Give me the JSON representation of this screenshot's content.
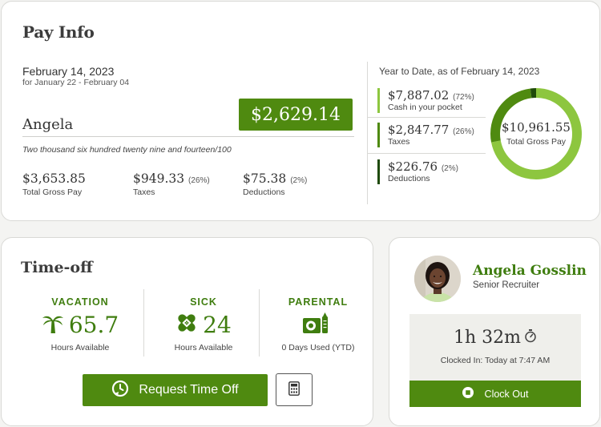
{
  "pay_info": {
    "title": "Pay Info",
    "date": "February 14, 2023",
    "period": "for January 22 - February 04",
    "net_amount": "$2,629.14",
    "employee_name": "Angela",
    "amount_in_words": "Two thousand six hundred twenty nine and fourteen/100",
    "summary": [
      {
        "value": "$3,653.85",
        "pct": "",
        "label": "Total Gross Pay"
      },
      {
        "value": "$949.33",
        "pct": "(26%)",
        "label": "Taxes"
      },
      {
        "value": "$75.38",
        "pct": "(2%)",
        "label": "Deductions"
      }
    ],
    "ytd": {
      "title": "Year to Date, as of February 14, 2023",
      "items": [
        {
          "value": "$7,887.02",
          "pct": "(72%)",
          "label": "Cash in your pocket",
          "share": 72,
          "color": "#8dc63f"
        },
        {
          "value": "$2,847.77",
          "pct": "(26%)",
          "label": "Taxes",
          "share": 26,
          "color": "#4f8a10"
        },
        {
          "value": "$226.76",
          "pct": "(2%)",
          "label": "Deductions",
          "share": 2,
          "color": "#1f4a0a"
        }
      ],
      "total": "$10,961.55",
      "total_label": "Total Gross Pay"
    }
  },
  "time_off": {
    "title": "Time-off",
    "categories": [
      {
        "heading": "VACATION",
        "value": "65.7",
        "caption": "Hours Available",
        "icon": "palm-tree-icon"
      },
      {
        "heading": "SICK",
        "value": "24",
        "caption": "Hours Available",
        "icon": "bandage-icon"
      },
      {
        "heading": "PARENTAL",
        "value": "",
        "caption": "0 Days Used (YTD)",
        "icon": "baby-bottle-icon"
      }
    ],
    "request_label": "Request Time Off",
    "calculator_icon": "calculator-icon"
  },
  "profile": {
    "name": "Angela Gosslin",
    "role": "Senior Recruiter",
    "clock_time": "1h 32m",
    "clock_status": "Clocked In: Today at 7:47 AM",
    "clock_out_label": "Clock Out"
  }
}
